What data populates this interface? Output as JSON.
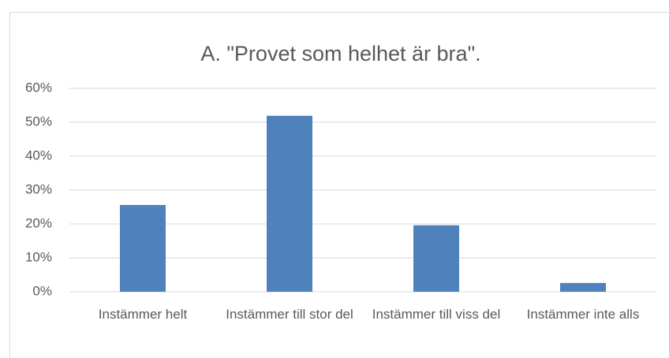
{
  "chart_data": {
    "type": "bar",
    "title": "A. \"Provet som helhet är bra\".",
    "categories": [
      "Instämmer helt",
      "Instämmer till stor del",
      "Instämmer till viss del",
      "Instämmer inte alls"
    ],
    "values": [
      25.6,
      51.9,
      19.6,
      2.6
    ],
    "color": "#4f81bd",
    "ylim": [
      0,
      60
    ],
    "yticks": [
      {
        "value": 0,
        "label": "0%"
      },
      {
        "value": 10,
        "label": "10%"
      },
      {
        "value": 20,
        "label": "20%"
      },
      {
        "value": 30,
        "label": "30%"
      },
      {
        "value": 40,
        "label": "40%"
      },
      {
        "value": 50,
        "label": "50%"
      },
      {
        "value": 60,
        "label": "60%"
      }
    ],
    "grid": true
  }
}
